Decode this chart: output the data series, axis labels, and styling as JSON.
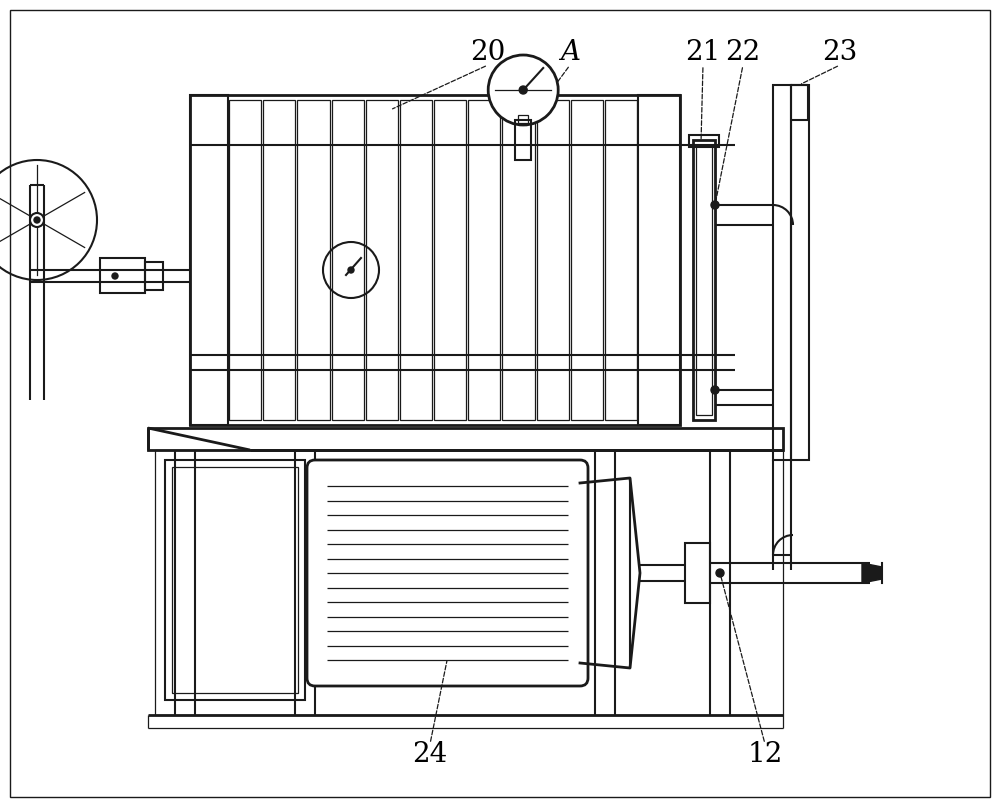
{
  "line_color": "#1a1a1a",
  "lw": 1.5,
  "lw_thin": 0.9,
  "lw_thick": 2.0,
  "fig_width": 10.0,
  "fig_height": 8.07
}
